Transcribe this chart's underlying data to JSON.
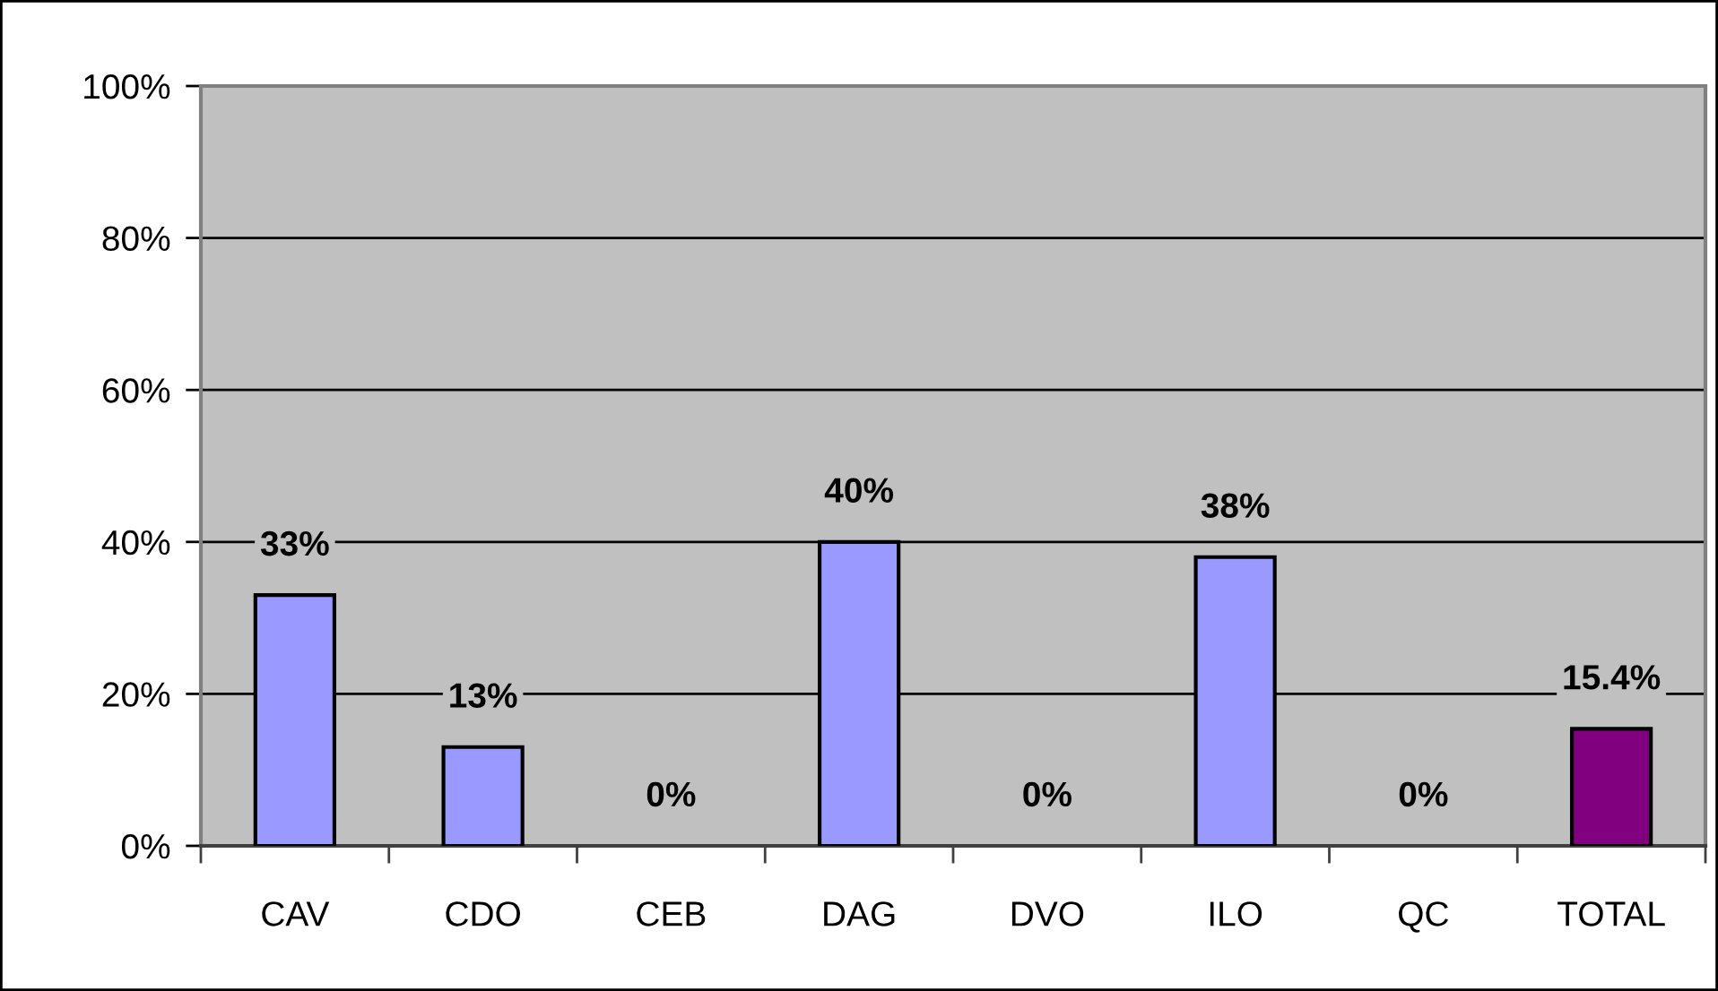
{
  "chart_data": {
    "type": "bar",
    "categories": [
      "CAV",
      "CDO",
      "CEB",
      "DAG",
      "DVO",
      "ILO",
      "QC",
      "TOTAL"
    ],
    "values": [
      33,
      13,
      0,
      40,
      0,
      38,
      0,
      15.4
    ],
    "colors": [
      "#9999ff",
      "#9999ff",
      "#9999ff",
      "#9999ff",
      "#9999ff",
      "#9999ff",
      "#9999ff",
      "#800080"
    ],
    "value_labels": [
      "33%",
      "13%",
      "0%",
      "40%",
      "0%",
      "38%",
      "0%",
      "15.4%"
    ],
    "ylim": [
      0,
      100
    ],
    "yticks": [
      {
        "value": 0,
        "label": "0%"
      },
      {
        "value": 20,
        "label": "20%"
      },
      {
        "value": 40,
        "label": "40%"
      },
      {
        "value": 60,
        "label": "60%"
      },
      {
        "value": 80,
        "label": "80%"
      },
      {
        "value": 100,
        "label": "100%"
      }
    ],
    "grid": "y"
  }
}
